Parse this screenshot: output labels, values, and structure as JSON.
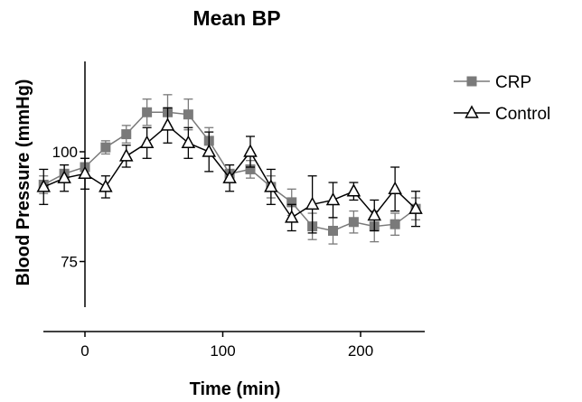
{
  "chart_data": {
    "type": "line",
    "title": "Mean BP",
    "xlabel": "Time (min)",
    "ylabel": "Blood Pressure (mmHg)",
    "x_ticks": [
      "0",
      "100",
      "200"
    ],
    "y_ticks": [
      "75",
      "100"
    ],
    "xlim": [
      -30,
      250
    ],
    "ylim": [
      65,
      110
    ],
    "grid": false,
    "legend_position": "top-right",
    "series": [
      {
        "name": "CRP",
        "marker": "square",
        "color": "#7a7a7a",
        "x": [
          -30,
          -15,
          0,
          15,
          30,
          45,
          60,
          75,
          90,
          105,
          120,
          135,
          150,
          165,
          180,
          195,
          210,
          225,
          240
        ],
        "y": [
          92.5,
          95,
          96.5,
          101,
          104,
          109,
          109,
          108.5,
          102.5,
          95,
          96,
          92,
          88.5,
          83,
          82,
          84,
          83,
          83.5,
          87
        ],
        "err": [
          2,
          2,
          2,
          1.5,
          2,
          3,
          4,
          3.5,
          3,
          2,
          2,
          2.5,
          3,
          3,
          3,
          2.5,
          3.5,
          2.5,
          2.5
        ]
      },
      {
        "name": "Control",
        "marker": "open-triangle",
        "color": "#000000",
        "x": [
          -30,
          -15,
          0,
          15,
          30,
          45,
          60,
          75,
          90,
          105,
          120,
          135,
          150,
          165,
          180,
          195,
          210,
          225,
          240
        ],
        "y": [
          92,
          94,
          95,
          92,
          99,
          102,
          106,
          102,
          100,
          94,
          100,
          92,
          85,
          88,
          89,
          91,
          85.5,
          91.5,
          87
        ],
        "err": [
          4,
          3,
          3.5,
          2.5,
          2.5,
          3.5,
          4,
          3.5,
          4.5,
          3,
          3.5,
          4,
          3,
          6.5,
          4,
          2,
          3.5,
          5,
          4
        ]
      }
    ]
  }
}
